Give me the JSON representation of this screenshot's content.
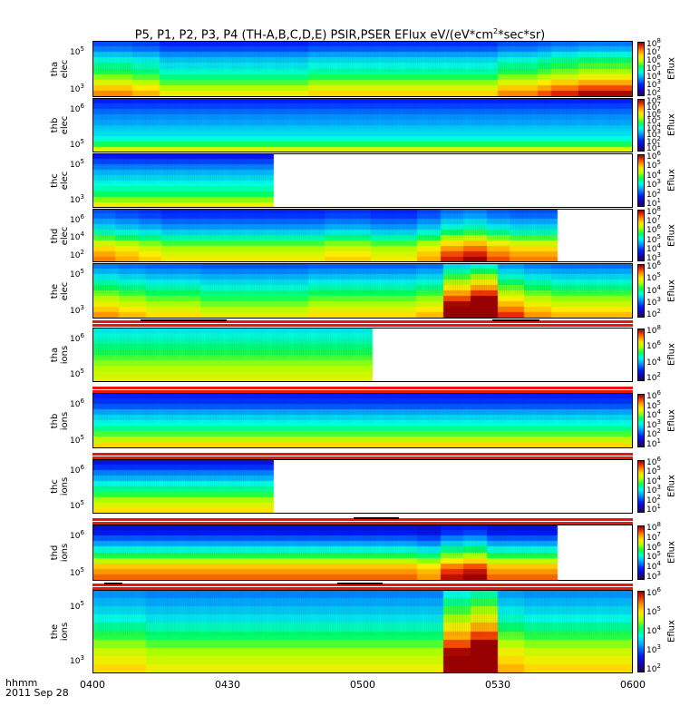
{
  "title": "P5, P1, P2, P3, P4 (TH-A,B,C,D,E) PSIR,PSER EFlux eV/(eV*cm",
  "title_sup": "2",
  "title_end": "*sec*sr)",
  "x_axis": {
    "ticks": [
      "0400",
      "0430",
      "0500",
      "0530",
      "0600"
    ],
    "label_line1": "hhmm",
    "label_line2": "2011 Sep 28"
  },
  "chart_data": [
    {
      "type": "heatmap",
      "probe": "tha",
      "species": "elec",
      "label1": "tha",
      "label2": "elec",
      "x_range": [
        "0400",
        "0600"
      ],
      "data_end": "0600",
      "y_scale": "log",
      "yticks": [
        "10^5",
        "10^3"
      ],
      "colorbar_title": "Eflux",
      "colorbar_ticks": [
        "10^8",
        "10^7",
        "10^6",
        "10^5",
        "10^4",
        "10^3",
        "10^2"
      ],
      "rows": [
        0.75,
        0.7,
        0.62,
        0.55,
        0.5,
        0.45,
        0.38,
        0.3,
        0.22,
        0.15
      ],
      "time_mod": [
        0,
        0,
        0,
        -0.02,
        -0.02,
        -0.06,
        -0.06,
        -0.06,
        -0.06,
        -0.06,
        -0.06,
        -0.06,
        -0.06,
        -0.06,
        -0.06,
        -0.06,
        -0.04,
        -0.04,
        -0.04,
        -0.04,
        -0.04,
        -0.04,
        -0.04,
        -0.04,
        -0.04,
        -0.04,
        -0.04,
        -0.04,
        -0.04,
        -0.04,
        0,
        0,
        0,
        0.02,
        0.04,
        0.04,
        0.06,
        0.06,
        0.06,
        0.06
      ]
    },
    {
      "type": "heatmap",
      "probe": "thb",
      "species": "elec",
      "label1": "thb",
      "label2": "elec",
      "x_range": [
        "0400",
        "0600"
      ],
      "data_end": "0600",
      "y_scale": "log",
      "yticks": [
        "10^6",
        "10^5"
      ],
      "colorbar_title": "Eflux",
      "colorbar_ticks": [
        "10^8",
        "10^7",
        "10^6",
        "10^5",
        "10^4",
        "10^3",
        "10^2",
        "10^1"
      ],
      "rows": [
        0.8,
        0.76,
        0.72,
        0.68,
        0.66,
        0.62,
        0.6,
        0.55,
        0.45,
        0.3
      ],
      "time_mod": [
        0,
        0,
        0,
        0,
        0,
        0,
        0,
        0,
        0,
        0,
        0,
        0,
        0,
        0,
        0,
        0,
        0,
        0,
        0,
        0,
        0,
        0,
        0,
        0,
        0,
        0,
        0,
        0,
        0,
        0,
        0,
        0,
        0,
        0,
        0,
        0,
        0,
        0,
        0,
        0
      ]
    },
    {
      "type": "heatmap",
      "probe": "thc",
      "species": "elec",
      "label1": "thc",
      "label2": "elec",
      "x_range": [
        "0400",
        "0600"
      ],
      "data_end": "0440",
      "y_scale": "log",
      "yticks": [
        "10^5",
        "10^3"
      ],
      "colorbar_title": "Eflux",
      "colorbar_ticks": [
        "10^6",
        "10^5",
        "10^4",
        "10^3",
        "10^2",
        "10^1"
      ],
      "rows": [
        0.82,
        0.76,
        0.7,
        0.64,
        0.6,
        0.56,
        0.52,
        0.46,
        0.38,
        0.28
      ],
      "time_mod": [
        0,
        0,
        0,
        0,
        0,
        0,
        0,
        0,
        0,
        0,
        0,
        0,
        0,
        0,
        0,
        0,
        0,
        0,
        0,
        0,
        0,
        0,
        0,
        0,
        0,
        0,
        0,
        0,
        0,
        0,
        0,
        0,
        0,
        0,
        0,
        0,
        0,
        0,
        0,
        0
      ]
    },
    {
      "type": "heatmap",
      "probe": "thd",
      "species": "elec",
      "label1": "thd",
      "label2": "elec",
      "x_range": [
        "0400",
        "0600"
      ],
      "data_end": "0543",
      "y_scale": "log",
      "yticks": [
        "10^6",
        "10^4",
        "10^2"
      ],
      "colorbar_title": "Eflux",
      "colorbar_ticks": [
        "10^8",
        "10^7",
        "10^6",
        "10^5",
        "10^4",
        "10^3"
      ],
      "rows": [
        0.75,
        0.72,
        0.66,
        0.6,
        0.52,
        0.42,
        0.32,
        0.24,
        0.18,
        0.14
      ],
      "time_mod": [
        0,
        0,
        -0.02,
        -0.02,
        -0.04,
        -0.04,
        -0.06,
        -0.06,
        -0.06,
        -0.06,
        -0.06,
        -0.06,
        -0.06,
        -0.06,
        -0.06,
        -0.06,
        -0.06,
        -0.06,
        -0.06,
        -0.06,
        -0.04,
        -0.04,
        -0.04,
        -0.04,
        -0.06,
        -0.06,
        -0.06,
        -0.06,
        -0.02,
        -0.02,
        0.04,
        0.04,
        0.06,
        0.06,
        0.02,
        0.02,
        0,
        0,
        0,
        0
      ]
    },
    {
      "type": "heatmap",
      "probe": "the",
      "species": "elec",
      "label1": "the",
      "label2": "elec",
      "x_range": [
        "0400",
        "0600"
      ],
      "data_end": "0600",
      "y_scale": "log",
      "yticks": [
        "10^5",
        "10^3"
      ],
      "colorbar_title": "Eflux",
      "colorbar_ticks": [
        "10^6",
        "10^5",
        "10^4",
        "10^3",
        "10^2"
      ],
      "rows": [
        0.7,
        0.64,
        0.58,
        0.52,
        0.46,
        0.4,
        0.34,
        0.28,
        0.22,
        0.16
      ],
      "time_mod": [
        0,
        0,
        -0.02,
        -0.02,
        -0.04,
        -0.04,
        -0.04,
        -0.04,
        -0.06,
        -0.06,
        -0.06,
        -0.06,
        -0.06,
        -0.06,
        -0.06,
        -0.06,
        -0.04,
        -0.04,
        -0.04,
        -0.04,
        -0.04,
        -0.04,
        -0.04,
        -0.04,
        -0.02,
        -0.02,
        0.14,
        0.14,
        0.2,
        0.2,
        0.04,
        0.04,
        0.0,
        0.0,
        -0.02,
        -0.02,
        -0.02,
        -0.02,
        -0.02,
        -0.02
      ]
    },
    {
      "type": "heatmap",
      "probe": "tha",
      "species": "ions",
      "label1": "tha",
      "label2": "ions",
      "x_range": [
        "0400",
        "0600"
      ],
      "data_end": "0502",
      "y_scale": "log",
      "yticks": [
        "10^6",
        "10^5"
      ],
      "colorbar_title": "Eflux",
      "colorbar_ticks": [
        "10^8",
        "10^6",
        "10^4",
        "10^2"
      ],
      "rows": [
        0.58,
        0.55,
        0.52,
        0.48,
        0.45,
        0.42,
        0.38,
        0.35,
        0.32,
        0.3
      ],
      "time_mod": [
        0,
        0,
        0,
        0,
        0,
        0,
        0,
        0,
        0,
        0,
        0,
        0,
        0,
        0,
        0,
        0,
        0,
        0,
        0,
        0,
        0,
        0,
        0,
        0,
        0,
        0,
        0,
        0,
        0,
        0,
        0,
        0,
        0,
        0,
        0,
        0,
        0,
        0,
        0,
        0
      ]
    },
    {
      "type": "heatmap",
      "probe": "thb",
      "species": "ions",
      "label1": "thb",
      "label2": "ions",
      "x_range": [
        "0400",
        "0600"
      ],
      "data_end": "0600",
      "y_scale": "log",
      "yticks": [
        "10^6",
        "10^5"
      ],
      "colorbar_title": "Eflux",
      "colorbar_ticks": [
        "10^6",
        "10^5",
        "10^4",
        "10^3",
        "10^2",
        "10^1"
      ],
      "rows": [
        0.8,
        0.78,
        0.74,
        0.66,
        0.6,
        0.56,
        0.5,
        0.42,
        0.34,
        0.24
      ],
      "time_mod": [
        0,
        0,
        0,
        0,
        0,
        0,
        0,
        0,
        0,
        0,
        0,
        0,
        0,
        0,
        0,
        0,
        0,
        0,
        0,
        0,
        0,
        0,
        0,
        0,
        0,
        0,
        0,
        0,
        0,
        0,
        0,
        0,
        0,
        0,
        0,
        0,
        0,
        0,
        0,
        0
      ]
    },
    {
      "type": "heatmap",
      "probe": "thc",
      "species": "ions",
      "label1": "thc",
      "label2": "ions",
      "x_range": [
        "0400",
        "0600"
      ],
      "data_end": "0440",
      "y_scale": "log",
      "yticks": [
        "10^6",
        "10^5"
      ],
      "colorbar_title": "Eflux",
      "colorbar_ticks": [
        "10^6",
        "10^5",
        "10^4",
        "10^3",
        "10^2",
        "10^1"
      ],
      "rows": [
        0.84,
        0.78,
        0.7,
        0.64,
        0.56,
        0.5,
        0.44,
        0.36,
        0.3,
        0.25
      ],
      "time_mod": [
        0,
        0,
        0,
        0,
        0,
        0,
        0,
        0,
        0,
        0,
        0,
        0,
        0,
        0,
        0,
        0,
        0,
        0,
        0,
        0,
        0,
        0,
        0,
        0,
        0,
        0,
        0,
        0,
        0,
        0,
        0,
        0,
        0,
        0,
        0,
        0,
        0,
        0,
        0,
        0
      ]
    },
    {
      "type": "heatmap",
      "probe": "thd",
      "species": "ions",
      "label1": "thd",
      "label2": "ions",
      "x_range": [
        "0400",
        "0600"
      ],
      "data_end": "0543",
      "y_scale": "log",
      "yticks": [
        "10^6",
        "10^5"
      ],
      "colorbar_title": "Eflux",
      "colorbar_ticks": [
        "10^8",
        "10^7",
        "10^6",
        "10^5",
        "10^4",
        "10^3"
      ],
      "rows": [
        0.85,
        0.82,
        0.74,
        0.66,
        0.55,
        0.45,
        0.34,
        0.22,
        0.16,
        0.12
      ],
      "time_mod": [
        0,
        0,
        0,
        0,
        0,
        0,
        0,
        0,
        0,
        0,
        0,
        0,
        0,
        0,
        0,
        0,
        0,
        0,
        0,
        0,
        0,
        0,
        0,
        0,
        0,
        0,
        0,
        0,
        -0.02,
        -0.02,
        0.04,
        0.04,
        0.06,
        0.06,
        0,
        0,
        0,
        0,
        0,
        0
      ]
    },
    {
      "type": "heatmap",
      "probe": "the",
      "species": "ions",
      "label1": "the",
      "label2": "ions",
      "x_range": [
        "0400",
        "0600"
      ],
      "data_end": "0600",
      "y_scale": "log",
      "yticks": [
        "10^5",
        "10^3"
      ],
      "colorbar_title": "Eflux",
      "colorbar_ticks": [
        "10^6",
        "10^5",
        "10^4",
        "10^3",
        "10^2"
      ],
      "rows": [
        0.68,
        0.64,
        0.6,
        0.56,
        0.5,
        0.44,
        0.38,
        0.32,
        0.28,
        0.24
      ],
      "time_mod": [
        0,
        0,
        0,
        0,
        -0.02,
        -0.02,
        -0.02,
        -0.02,
        -0.02,
        -0.02,
        -0.02,
        -0.02,
        -0.02,
        -0.02,
        -0.02,
        -0.02,
        -0.02,
        -0.02,
        -0.02,
        -0.02,
        -0.02,
        -0.02,
        -0.02,
        -0.02,
        -0.02,
        -0.02,
        0.16,
        0.16,
        0.22,
        0.22,
        0.02,
        0.02,
        0,
        0,
        0,
        0,
        0,
        0,
        0,
        0
      ]
    }
  ]
}
